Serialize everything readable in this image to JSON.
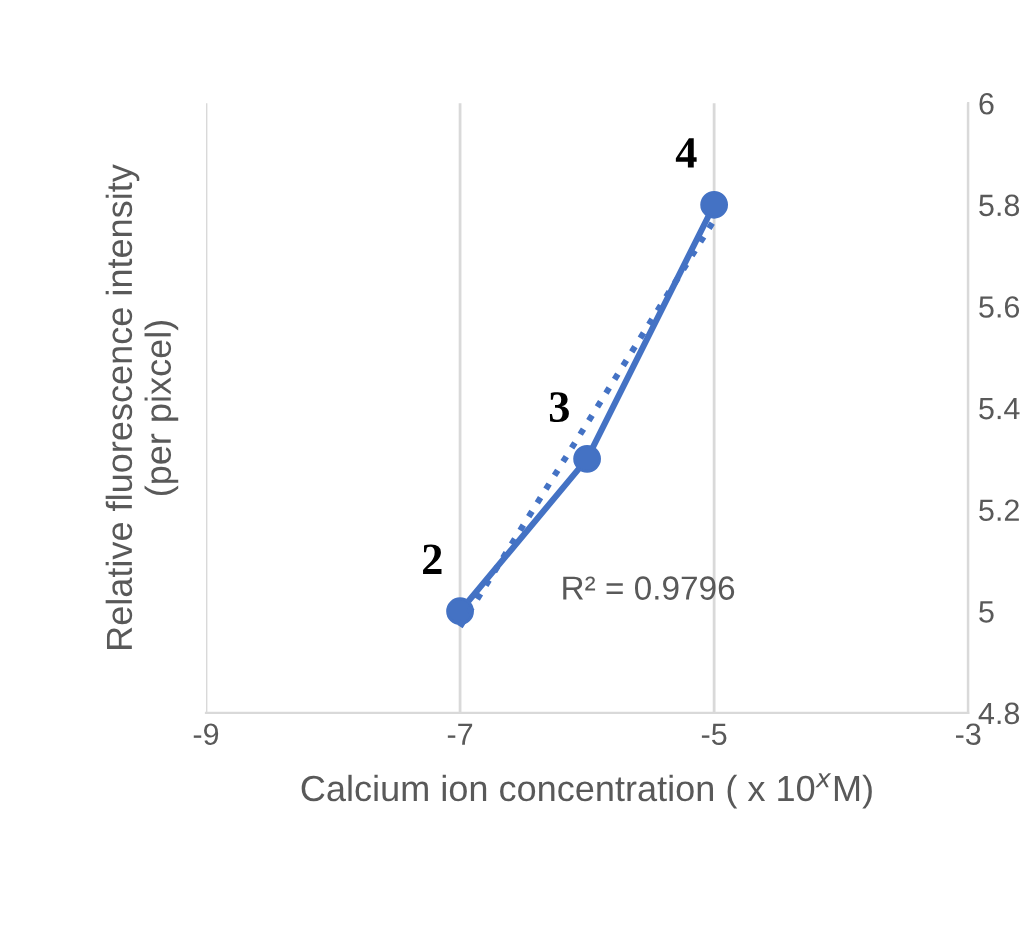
{
  "chart_data": {
    "type": "line",
    "xlabel": "Calcium ion concentration ( x 10$^{x}$M)",
    "ylabel": "Relative fluorescence intensity\n(per pixcel)",
    "x": [
      -7,
      -6,
      -5
    ],
    "series": [
      {
        "type": "line",
        "color": "#4472c4",
        "values": [
          5.0,
          5.3,
          5.8
        ],
        "marker": "circle",
        "line_style": "solid"
      },
      {
        "type": "line",
        "color": "#4472c4",
        "x": [
          -7,
          -5
        ],
        "values": [
          4.97,
          5.77
        ],
        "marker": "none",
        "line_style": "dotted"
      }
    ],
    "xlim": [
      -9,
      -3
    ],
    "xticks": [
      -9,
      -7,
      -5,
      -3
    ],
    "ylim": [
      4.8,
      6
    ],
    "yticks": [
      4.8,
      5,
      5.2,
      5.4,
      5.6,
      5.8,
      6
    ],
    "grid": "x",
    "annotations": [
      {
        "text": "2",
        "x": -7,
        "y": 5.0
      },
      {
        "text": "3",
        "x": -6,
        "y": 5.3
      },
      {
        "text": "4",
        "x": -5,
        "y": 5.8
      },
      "R² = 0.9796"
    ]
  }
}
